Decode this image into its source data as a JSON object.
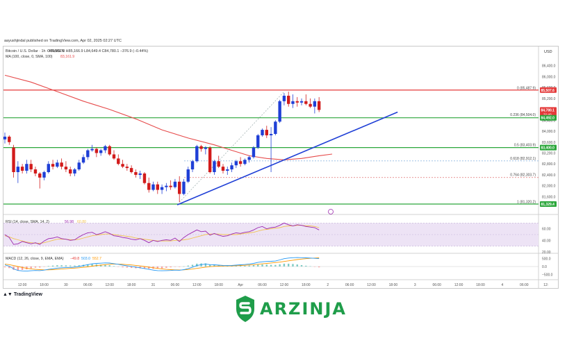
{
  "publisher": "aayushjindal published on TradingView.com, Apr 02, 2025 02:27 UTC",
  "footer": {
    "tv_brand": "TradingView",
    "brand_name": "ARZINJA"
  },
  "colors": {
    "up": "#1f3fd6",
    "down": "#d21b1b",
    "ma": "#e64a4a",
    "trendline": "#1f3fd6",
    "resistance": "#e43a3a",
    "support": "#2aa63a",
    "rsi": "#9c27b0",
    "rsi_ma": "#f2c14e",
    "macd": "#2196f3",
    "signal": "#ff9800",
    "hist_up": "#80cbc4"
  },
  "chart_data": {
    "type": "candlestick",
    "title": "Bitcoin / U.S. Dollar · 1h · KRAKEN",
    "ohlc_summary": {
      "o": "85,157.0",
      "h": "85,166.9",
      "l": "84,649.4",
      "c": "84,780.1",
      "change": "−376.9 (−0.44%)"
    },
    "indicator_label": "MA (100, close, 0, SMA, 100)",
    "indicator_value": "83,161.9",
    "currency": "USD",
    "ylim": [
      81050,
      86850
    ],
    "y_ticks": [
      {
        "label": "86,400.0",
        "v": 86400
      },
      {
        "label": "86,000.0",
        "v": 86000
      },
      {
        "label": "85,600.0",
        "v": 85600
      },
      {
        "label": "85,200.0",
        "v": 85200
      },
      {
        "label": "84,400.0",
        "v": 84400
      },
      {
        "label": "84,000.0",
        "v": 84000
      },
      {
        "label": "83,600.0",
        "v": 83600
      },
      {
        "label": "83,200.0",
        "v": 83200
      },
      {
        "label": "82,800.0",
        "v": 82800
      },
      {
        "label": "82,400.0",
        "v": 82400
      },
      {
        "label": "82,000.0",
        "v": 82000
      },
      {
        "label": "81,600.0",
        "v": 81600
      }
    ],
    "x_ticks": [
      {
        "label": "12:00",
        "i": 4
      },
      {
        "label": "18:00",
        "i": 9
      },
      {
        "label": "30",
        "i": 14
      },
      {
        "label": "06:00",
        "i": 19
      },
      {
        "label": "12:00",
        "i": 24
      },
      {
        "label": "18:00",
        "i": 29
      },
      {
        "label": "31",
        "i": 34
      },
      {
        "label": "06:00",
        "i": 39
      },
      {
        "label": "12:00",
        "i": 44
      },
      {
        "label": "18:00",
        "i": 49
      },
      {
        "label": "Apr",
        "i": 54
      },
      {
        "label": "06:00",
        "i": 59
      },
      {
        "label": "12:00",
        "i": 64
      },
      {
        "label": "18:00",
        "i": 69
      },
      {
        "label": "2",
        "i": 74
      },
      {
        "label": "06:00",
        "i": 79
      },
      {
        "label": "12:00",
        "i": 84
      },
      {
        "label": "18:00",
        "i": 89
      },
      {
        "label": "3",
        "i": 94
      },
      {
        "label": "06:00",
        "i": 99
      },
      {
        "label": "12:00",
        "i": 104
      },
      {
        "label": "18:00",
        "i": 109
      },
      {
        "label": "4",
        "i": 114
      },
      {
        "label": "06:00",
        "i": 119
      },
      {
        "label": "12:",
        "i": 124
      }
    ],
    "fib_levels": [
      {
        "label": "0 (85,487.9)",
        "v": 85487.9
      },
      {
        "label": "0.236 (84,504.0)",
        "v": 84504.0
      },
      {
        "label": "0.5 (83,403.9)",
        "v": 83403.9
      },
      {
        "label": "0.618 (82,912.1)",
        "v": 82912.1
      },
      {
        "label": "0.764 (82,303.7)",
        "v": 82303.7
      },
      {
        "label": "1 (81,320.2)",
        "v": 81320.2
      }
    ],
    "resistance_line": 85507.6,
    "support_lines": [
      84492.0,
      83400.0,
      81329.4
    ],
    "price_badges": [
      {
        "label": "85,507.6",
        "v": 85507.6,
        "color": "#e43a3a"
      },
      {
        "label": "84,780.1",
        "sub": "32:40",
        "v": 84780.1,
        "color": "#e43a3a"
      },
      {
        "label": "84,492.0",
        "v": 84492.0,
        "color": "#2aa63a"
      },
      {
        "label": "83,400.0",
        "v": 83400.0,
        "color": "#2aa63a"
      },
      {
        "label": "81,329.4",
        "v": 81329.4,
        "color": "#2aa63a"
      }
    ],
    "candles": [
      [
        83700,
        83950,
        83550,
        83800
      ],
      [
        83800,
        83850,
        83500,
        83600
      ],
      [
        83400,
        83500,
        82300,
        82500
      ],
      [
        82500,
        82900,
        82100,
        82700
      ],
      [
        82700,
        82800,
        82450,
        82550
      ],
      [
        82550,
        82950,
        82450,
        82800
      ],
      [
        82800,
        82950,
        82500,
        82600
      ],
      [
        82600,
        82700,
        82350,
        82450
      ],
      [
        82450,
        82500,
        81900,
        82300
      ],
      [
        82300,
        82550,
        82200,
        82500
      ],
      [
        82500,
        82900,
        82450,
        82800
      ],
      [
        82800,
        82950,
        82600,
        82700
      ],
      [
        82700,
        82950,
        82650,
        82850
      ],
      [
        82850,
        83000,
        82600,
        82700
      ],
      [
        82700,
        82900,
        82500,
        82600
      ],
      [
        82600,
        82700,
        82350,
        82450
      ],
      [
        82450,
        82650,
        82350,
        82600
      ],
      [
        82600,
        82950,
        82550,
        82850
      ],
      [
        82850,
        83150,
        82800,
        83050
      ],
      [
        83050,
        83350,
        82950,
        83300
      ],
      [
        83300,
        83500,
        83250,
        83350
      ],
      [
        83350,
        83400,
        83050,
        83200
      ],
      [
        83200,
        83350,
        83100,
        83300
      ],
      [
        83300,
        83500,
        83200,
        83450
      ],
      [
        83450,
        83500,
        83100,
        83150
      ],
      [
        83150,
        83300,
        82950,
        83000
      ],
      [
        83000,
        83150,
        82750,
        82800
      ],
      [
        82800,
        82950,
        82650,
        82700
      ],
      [
        82700,
        82800,
        82550,
        82650
      ],
      [
        82650,
        82750,
        82450,
        82500
      ],
      [
        82500,
        82600,
        82300,
        82400
      ],
      [
        82400,
        82550,
        82250,
        82450
      ],
      [
        82450,
        82500,
        82050,
        82100
      ],
      [
        82100,
        82300,
        81750,
        81850
      ],
      [
        81850,
        82150,
        81800,
        82050
      ],
      [
        82050,
        82150,
        81700,
        81850
      ],
      [
        81850,
        82050,
        81700,
        81950
      ],
      [
        81950,
        82100,
        81800,
        82000
      ],
      [
        82000,
        82200,
        81850,
        81950
      ],
      [
        81950,
        82250,
        81900,
        82150
      ],
      [
        82150,
        82350,
        81400,
        81700
      ],
      [
        81700,
        82250,
        81650,
        82150
      ],
      [
        82150,
        82700,
        82100,
        82600
      ],
      [
        82600,
        82950,
        82500,
        82900
      ],
      [
        82900,
        83500,
        82850,
        83450
      ],
      [
        83450,
        83500,
        83250,
        83350
      ],
      [
        83350,
        83450,
        83150,
        83400
      ],
      [
        83400,
        83450,
        82450,
        82500
      ],
      [
        82500,
        82950,
        82400,
        82900
      ],
      [
        82900,
        83100,
        82650,
        82700
      ],
      [
        82700,
        82800,
        82450,
        82550
      ],
      [
        82550,
        82700,
        82400,
        82600
      ],
      [
        82600,
        82850,
        82500,
        82750
      ],
      [
        82750,
        82950,
        82650,
        82900
      ],
      [
        82900,
        83050,
        82700,
        82800
      ],
      [
        82800,
        83000,
        82750,
        82950
      ],
      [
        82950,
        83100,
        82850,
        83050
      ],
      [
        83050,
        83450,
        83000,
        83400
      ],
      [
        83400,
        83900,
        83350,
        83850
      ],
      [
        83850,
        84100,
        83800,
        84050
      ],
      [
        84050,
        84200,
        83750,
        83850
      ],
      [
        83850,
        84150,
        82500,
        83900
      ],
      [
        83900,
        84400,
        83850,
        84350
      ],
      [
        84350,
        85150,
        84300,
        85100
      ],
      [
        85100,
        85400,
        84950,
        85300
      ],
      [
        85300,
        85450,
        84900,
        85000
      ],
      [
        85000,
        85350,
        84850,
        85100
      ],
      [
        85100,
        85250,
        84900,
        85050
      ],
      [
        85050,
        85200,
        84950,
        85100
      ],
      [
        85100,
        85350,
        84950,
        85000
      ],
      [
        85000,
        85200,
        84850,
        84900
      ],
      [
        84900,
        85200,
        84650,
        85100
      ],
      [
        85100,
        85250,
        84700,
        84780
      ]
    ],
    "ma_curve": [
      [
        0,
        86050
      ],
      [
        6,
        85800
      ],
      [
        12,
        85450
      ],
      [
        18,
        85100
      ],
      [
        24,
        84800
      ],
      [
        30,
        84450
      ],
      [
        36,
        84050
      ],
      [
        42,
        83750
      ],
      [
        48,
        83500
      ],
      [
        52,
        83300
      ],
      [
        56,
        83100
      ],
      [
        60,
        83000
      ],
      [
        64,
        82950
      ],
      [
        68,
        83000
      ],
      [
        72,
        83100
      ],
      [
        75,
        83161.9
      ]
    ],
    "trendline": {
      "x1": 39.5,
      "y1": 81300,
      "x2": 90,
      "y2": 84700
    },
    "rsi": {
      "label": "RSI (14, close, SMA, 14, 2)",
      "value1": "56.98",
      "value2": "60.80",
      "ylim": [
        20,
        80
      ],
      "ticks": [
        {
          "label": "60.00",
          "v": 60
        },
        {
          "label": "40.00",
          "v": 40
        },
        {
          "label": "20.00",
          "v": 20
        }
      ],
      "band": [
        30,
        70
      ],
      "points": [
        50,
        45,
        33,
        34,
        38,
        36,
        34,
        36,
        33,
        39,
        43,
        44,
        46,
        43,
        42,
        40,
        41,
        46,
        50,
        53,
        54,
        50,
        52,
        55,
        52,
        48,
        47,
        45,
        44,
        42,
        41,
        43,
        40,
        36,
        40,
        38,
        40,
        41,
        40,
        44,
        38,
        45,
        50,
        54,
        58,
        55,
        56,
        49,
        52,
        49,
        47,
        48,
        51,
        53,
        52,
        54,
        55,
        58,
        62,
        64,
        60,
        62,
        63,
        66,
        70,
        67,
        65,
        67,
        66,
        64,
        63,
        62,
        58
      ],
      "ma_points": [
        48,
        46,
        43,
        41,
        39,
        37,
        36,
        35,
        35,
        36,
        38,
        40,
        42,
        42,
        42,
        41,
        41,
        42,
        44,
        46,
        48,
        49,
        50,
        51,
        51,
        50,
        49,
        48,
        47,
        46,
        44,
        43,
        42,
        41,
        40,
        39,
        39,
        39,
        39,
        40,
        40,
        41,
        42,
        44,
        46,
        48,
        50,
        51,
        51,
        51,
        50,
        50,
        50,
        50,
        51,
        52,
        53,
        54,
        56,
        58,
        59,
        60,
        61,
        62,
        64,
        65,
        65,
        66,
        66,
        65,
        65,
        64,
        62
      ]
    },
    "macd": {
      "label": "MACD (12, 26, close, 9, EMA, EMA)",
      "hist": "−49.8",
      "macd_val": "503.0",
      "signal_val": "552.7",
      "ylim": [
        -750,
        750
      ],
      "ticks": [
        {
          "label": "500.0",
          "v": 500
        },
        {
          "label": "0.0",
          "v": 0
        },
        {
          "label": "−500.0",
          "v": -500
        }
      ],
      "macd_points": [
        100,
        20,
        -150,
        -250,
        -280,
        -290,
        -270,
        -250,
        -260,
        -230,
        -180,
        -140,
        -100,
        -80,
        -70,
        -60,
        -40,
        0,
        60,
        120,
        170,
        200,
        210,
        230,
        220,
        180,
        140,
        90,
        50,
        10,
        -40,
        -80,
        -130,
        -180,
        -230,
        -260,
        -270,
        -260,
        -250,
        -230,
        -240,
        -200,
        -130,
        -50,
        60,
        120,
        160,
        120,
        110,
        90,
        70,
        60,
        70,
        90,
        110,
        130,
        160,
        200,
        260,
        300,
        320,
        330,
        350,
        420,
        500,
        540,
        560,
        570,
        560,
        550,
        540,
        520,
        503
      ],
      "signal_points": [
        150,
        120,
        60,
        0,
        -60,
        -110,
        -150,
        -180,
        -200,
        -210,
        -210,
        -200,
        -180,
        -160,
        -140,
        -120,
        -100,
        -80,
        -50,
        -20,
        20,
        60,
        90,
        120,
        140,
        150,
        150,
        140,
        120,
        100,
        70,
        40,
        0,
        -40,
        -80,
        -120,
        -150,
        -180,
        -200,
        -210,
        -215,
        -210,
        -190,
        -160,
        -120,
        -80,
        -40,
        -10,
        10,
        25,
        35,
        40,
        45,
        55,
        65,
        80,
        95,
        115,
        140,
        170,
        200,
        225,
        250,
        280,
        320,
        360,
        400,
        440,
        470,
        500,
        520,
        540,
        552.7
      ]
    },
    "x_time_labels": [
      "12:00",
      "18:00",
      "30",
      "06:00",
      "12:00",
      "18:00",
      "31",
      "06:00",
      "12:00",
      "18:00",
      "Apr",
      "06:00",
      "12:00",
      "18:00",
      "2",
      "06:00",
      "12:00",
      "18:00",
      "3",
      "06:00",
      "12:00",
      "18:00",
      "4",
      "06:00",
      "12:"
    ]
  }
}
